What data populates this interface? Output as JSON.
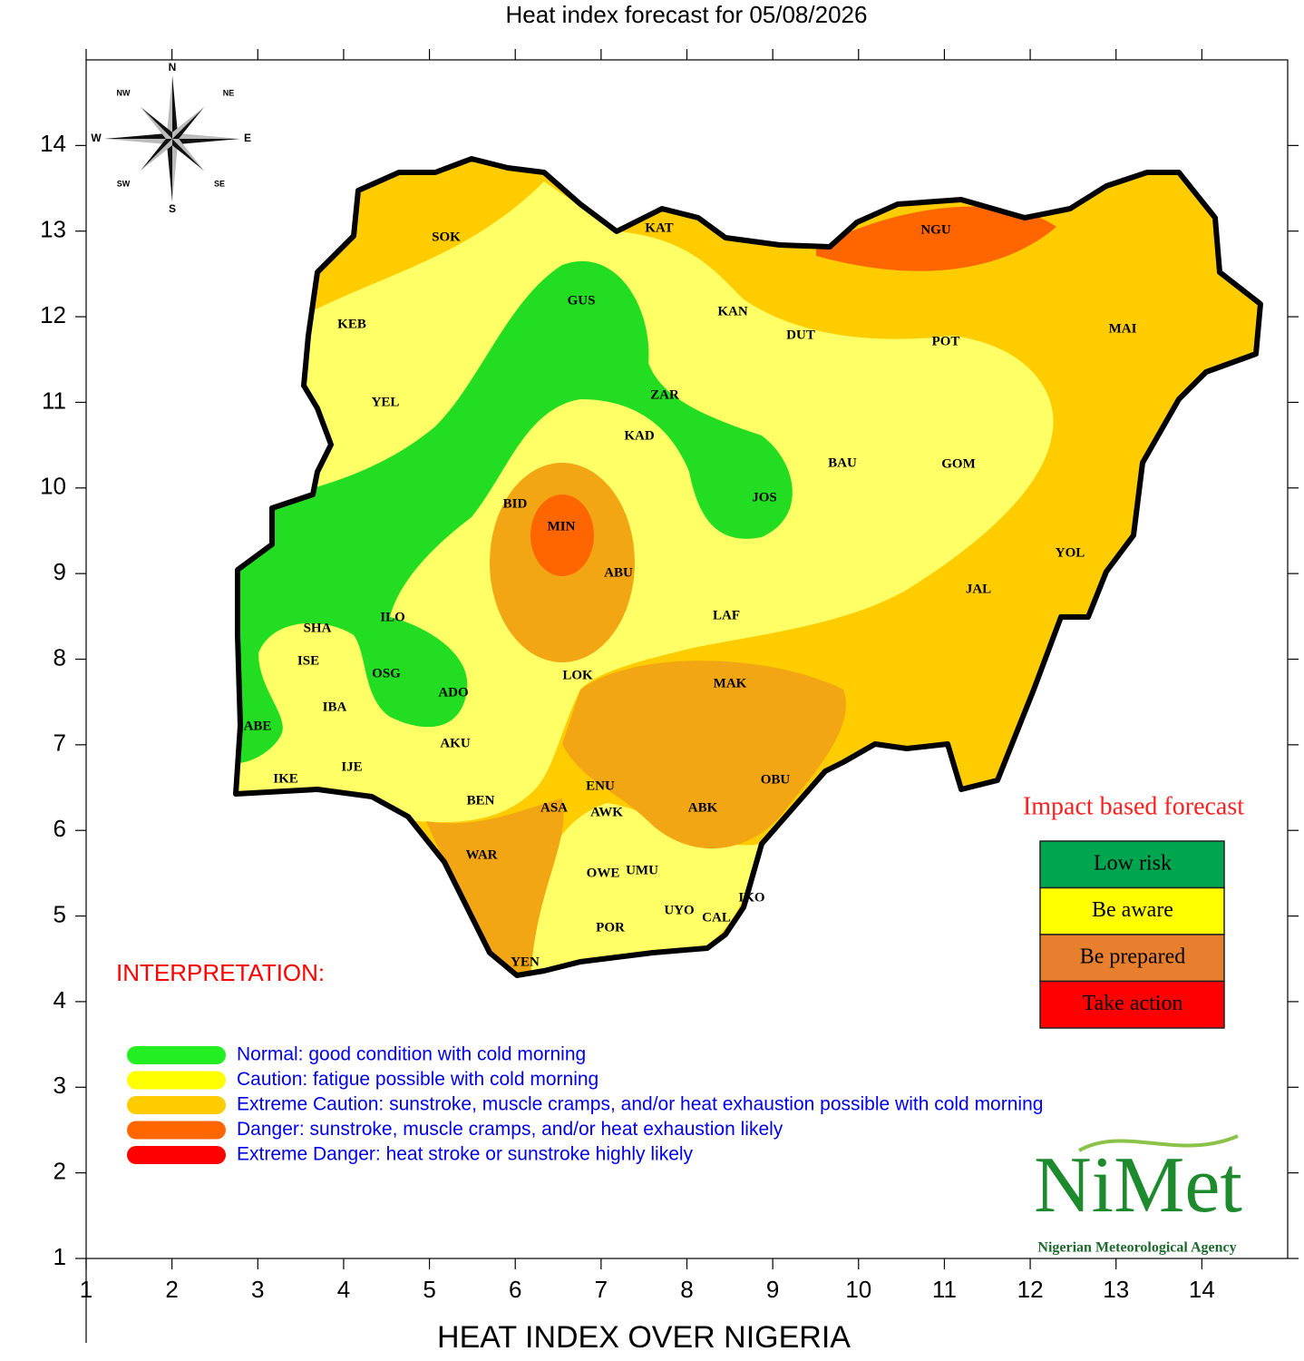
{
  "title": "Heat index forecast for 05/08/2026",
  "axes": {
    "xlim": [
      1,
      15
    ],
    "ylim": [
      1,
      15
    ],
    "xticks": [
      1,
      2,
      3,
      4,
      5,
      6,
      7,
      8,
      9,
      10,
      11,
      12,
      13,
      14
    ],
    "yticks": [
      1,
      2,
      3,
      4,
      5,
      6,
      7,
      8,
      9,
      10,
      11,
      12,
      13,
      14
    ],
    "xlabel": "HEAT INDEX OVER NIGERIA"
  },
  "compass": [
    "N",
    "NE",
    "E",
    "SE",
    "S",
    "SW",
    "W",
    "NW"
  ],
  "states": [
    "SOK",
    "KAT",
    "NGU",
    "GUS",
    "KAN",
    "KEB",
    "DUT",
    "POT",
    "MAI",
    "YEL",
    "ZAR",
    "KAD",
    "BAU",
    "GOM",
    "BID",
    "JOS",
    "MIN",
    "YOL",
    "ABU",
    "JAL",
    "LAF",
    "SHA",
    "ILO",
    "ISE",
    "OSG",
    "LOK",
    "MAK",
    "ADO",
    "IBA",
    "ABE",
    "AKU",
    "IJE",
    "IKE",
    "ENU",
    "OBU",
    "BEN",
    "ASA",
    "AWK",
    "ABK",
    "WAR",
    "OWE",
    "UMU",
    "IKO",
    "UYO",
    "CAL",
    "POR",
    "YEN"
  ],
  "impact_legend": {
    "title": "Impact based forecast",
    "items": [
      "Low risk",
      "Be aware",
      "Be prepared",
      "Take action"
    ]
  },
  "interpretation": {
    "title": "INTERPRETATION:",
    "items": [
      "Normal: good condition with cold morning",
      "Caution: fatigue possible  with cold morning",
      "Extreme Caution: sunstroke, muscle cramps, and/or heat exhaustion possible  with cold morning",
      "Danger: sunstroke, muscle cramps, and/or heat exhaustion likely",
      "Extreme Danger: heat stroke or sunstroke highly likely"
    ]
  },
  "logo": {
    "name": "NiMet",
    "agency": "Nigerian Meteorological Agency"
  }
}
